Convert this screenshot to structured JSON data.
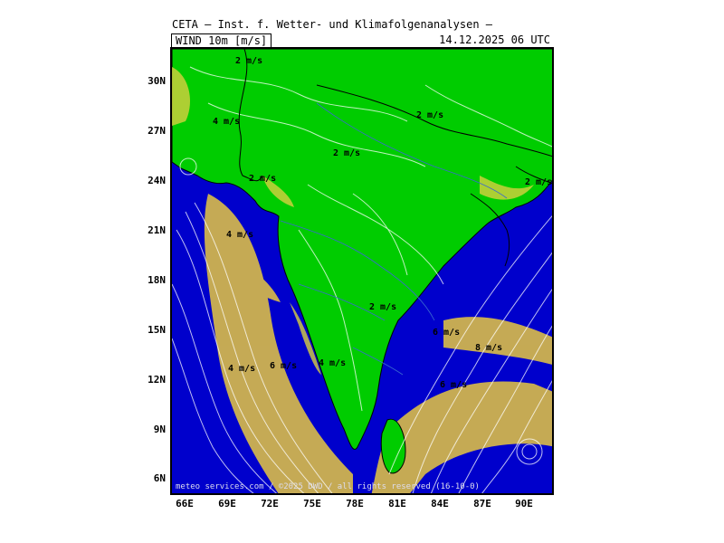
{
  "header": {
    "title": "CETA — Inst. f. Wetter- und Klimafolgenanalysen —",
    "parameter": "WIND 10m [m/s]",
    "valid_time": "14.12.2025 06 UTC"
  },
  "map": {
    "latitude_labels": [
      "30N",
      "27N",
      "24N",
      "21N",
      "18N",
      "15N",
      "12N",
      "9N",
      "6N"
    ],
    "longitude_labels": [
      "66E",
      "69E",
      "72E",
      "75E",
      "78E",
      "81E",
      "84E",
      "87E",
      "90E"
    ],
    "wind_labels": [
      "2 m/s",
      "4 m/s",
      "2 m/s",
      "2 m/s",
      "2 m/s",
      "2 m/s",
      "4 m/s",
      "2 m/s",
      "6 m/s",
      "8 m/s",
      "4 m/s",
      "6 m/s",
      "4 m/s",
      "6 m/s"
    ],
    "copyright": "meteo services.com / ©2025 DWD / all rights reserved (16-10-0)",
    "colors": {
      "sea_strong": "#0000cc",
      "land_calm": "#00cc00",
      "moderate": "#e8c840",
      "streamline": "#ffffff",
      "border": "#000000",
      "river": "#3a6ad0"
    }
  }
}
